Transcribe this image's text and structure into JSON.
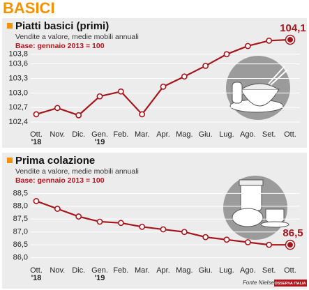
{
  "header": {
    "title": "BASICI"
  },
  "footer": {
    "source": "Fonte Nielsen",
    "logo": "OSSERVA ITALIA"
  },
  "chart_data": [
    {
      "type": "line",
      "title": "Piatti basici (primi)",
      "subtitle": "Vendite a valore, medie mobili annuali",
      "base_note": "Base: gennaio 2013 = 100",
      "categories": [
        "Ott.",
        "Nov.",
        "Dic.",
        "Gen.",
        "Feb.",
        "Mar.",
        "Apr.",
        "Mag.",
        "Giu.",
        "Lug.",
        "Ago.",
        "Set.",
        "Ott."
      ],
      "category_years": [
        "'18",
        null,
        null,
        "'19",
        null,
        null,
        null,
        null,
        null,
        null,
        null,
        null,
        null
      ],
      "color": "#a3161c",
      "values": [
        102.56,
        102.69,
        102.54,
        102.93,
        103.03,
        102.56,
        103.13,
        103.34,
        103.56,
        103.8,
        103.97,
        104.08,
        104.1
      ],
      "value_labels": [
        null,
        null,
        null,
        null,
        null,
        null,
        null,
        null,
        null,
        null,
        null,
        null,
        "104,1"
      ],
      "ylim": [
        102.3,
        104.2
      ],
      "yticks": [
        {
          "value": 102.4,
          "label": "102,4"
        },
        {
          "value": 102.7,
          "label": "102,7"
        },
        {
          "value": 103.0,
          "label": "103,0"
        },
        {
          "value": 103.3,
          "label": "103,3"
        },
        {
          "value": 103.6,
          "label": "103,6"
        },
        {
          "value": 103.8,
          "label": "103,8"
        }
      ],
      "grid": true
    },
    {
      "type": "line",
      "title": "Prima colazione",
      "subtitle": "Vendite a valore, medie mobili annuali",
      "base_note": "Base: gennaio 2013 = 100",
      "categories": [
        "Ott.",
        "Nov.",
        "Dic.",
        "Gen.",
        "Feb.",
        "Mar.",
        "Apr.",
        "Mag.",
        "Giu.",
        "Lug.",
        "Ago.",
        "Set.",
        "Ott."
      ],
      "category_years": [
        "'18",
        null,
        null,
        "'19",
        null,
        null,
        null,
        null,
        null,
        null,
        null,
        null,
        null
      ],
      "color": "#a3161c",
      "values": [
        88.2,
        87.9,
        87.6,
        87.4,
        87.35,
        87.2,
        87.1,
        87.0,
        86.8,
        86.7,
        86.6,
        86.5,
        86.5
      ],
      "value_labels": [
        null,
        null,
        null,
        null,
        null,
        null,
        null,
        null,
        null,
        null,
        null,
        null,
        "86,5"
      ],
      "ylim": [
        85.8,
        88.7
      ],
      "yticks": [
        {
          "value": 86.0,
          "label": "86,0"
        },
        {
          "value": 86.5,
          "label": "86,5"
        },
        {
          "value": 87.0,
          "label": "87,0"
        },
        {
          "value": 87.5,
          "label": "87,5"
        },
        {
          "value": 88.0,
          "label": "88,0"
        },
        {
          "value": 88.5,
          "label": "88,5"
        }
      ],
      "grid": true
    }
  ]
}
